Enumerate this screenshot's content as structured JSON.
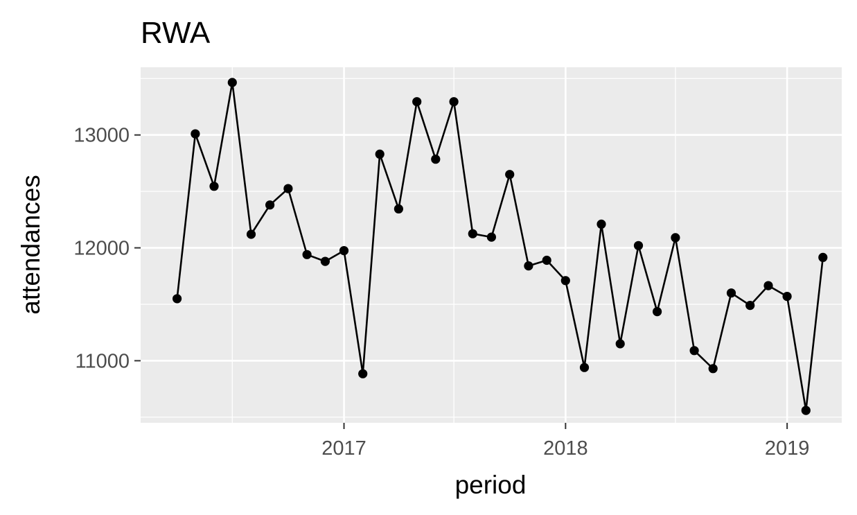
{
  "chart_data": {
    "type": "line",
    "title": "RWA",
    "xlabel": "period",
    "ylabel": "attendances",
    "x_ticks": [
      "2017",
      "2018",
      "2019"
    ],
    "y_ticks": [
      "11000",
      "12000",
      "13000"
    ],
    "ylim": [
      10450,
      13600
    ],
    "xlim": [
      "2016-02-01",
      "2019-04-01"
    ],
    "grid": true,
    "panel_background": "#ebebeb",
    "line_color": "#000000",
    "series": [
      {
        "x": [
          "2016-04-01",
          "2016-05-01",
          "2016-06-01",
          "2016-07-01",
          "2016-08-01",
          "2016-09-01",
          "2016-10-01",
          "2016-11-01",
          "2016-12-01",
          "2017-01-01",
          "2017-02-01",
          "2017-03-01",
          "2017-04-01",
          "2017-05-01",
          "2017-06-01",
          "2017-07-01",
          "2017-08-01",
          "2017-09-01",
          "2017-10-01",
          "2017-11-01",
          "2017-12-01",
          "2018-01-01",
          "2018-02-01",
          "2018-03-01",
          "2018-04-01",
          "2018-05-01",
          "2018-06-01",
          "2018-07-01",
          "2018-08-01",
          "2018-09-01",
          "2018-10-01",
          "2018-11-01",
          "2018-12-01",
          "2019-01-01",
          "2019-02-01",
          "2019-03-01"
        ],
        "values": [
          11550,
          13010,
          12545,
          13465,
          12120,
          12380,
          12525,
          11940,
          11880,
          11975,
          10885,
          12830,
          12345,
          13295,
          12785,
          13295,
          12125,
          12095,
          12650,
          11840,
          11890,
          11710,
          10940,
          12210,
          11150,
          12020,
          11435,
          12090,
          11090,
          10930,
          11600,
          11490,
          11665,
          11570,
          10560,
          11915
        ]
      }
    ]
  }
}
